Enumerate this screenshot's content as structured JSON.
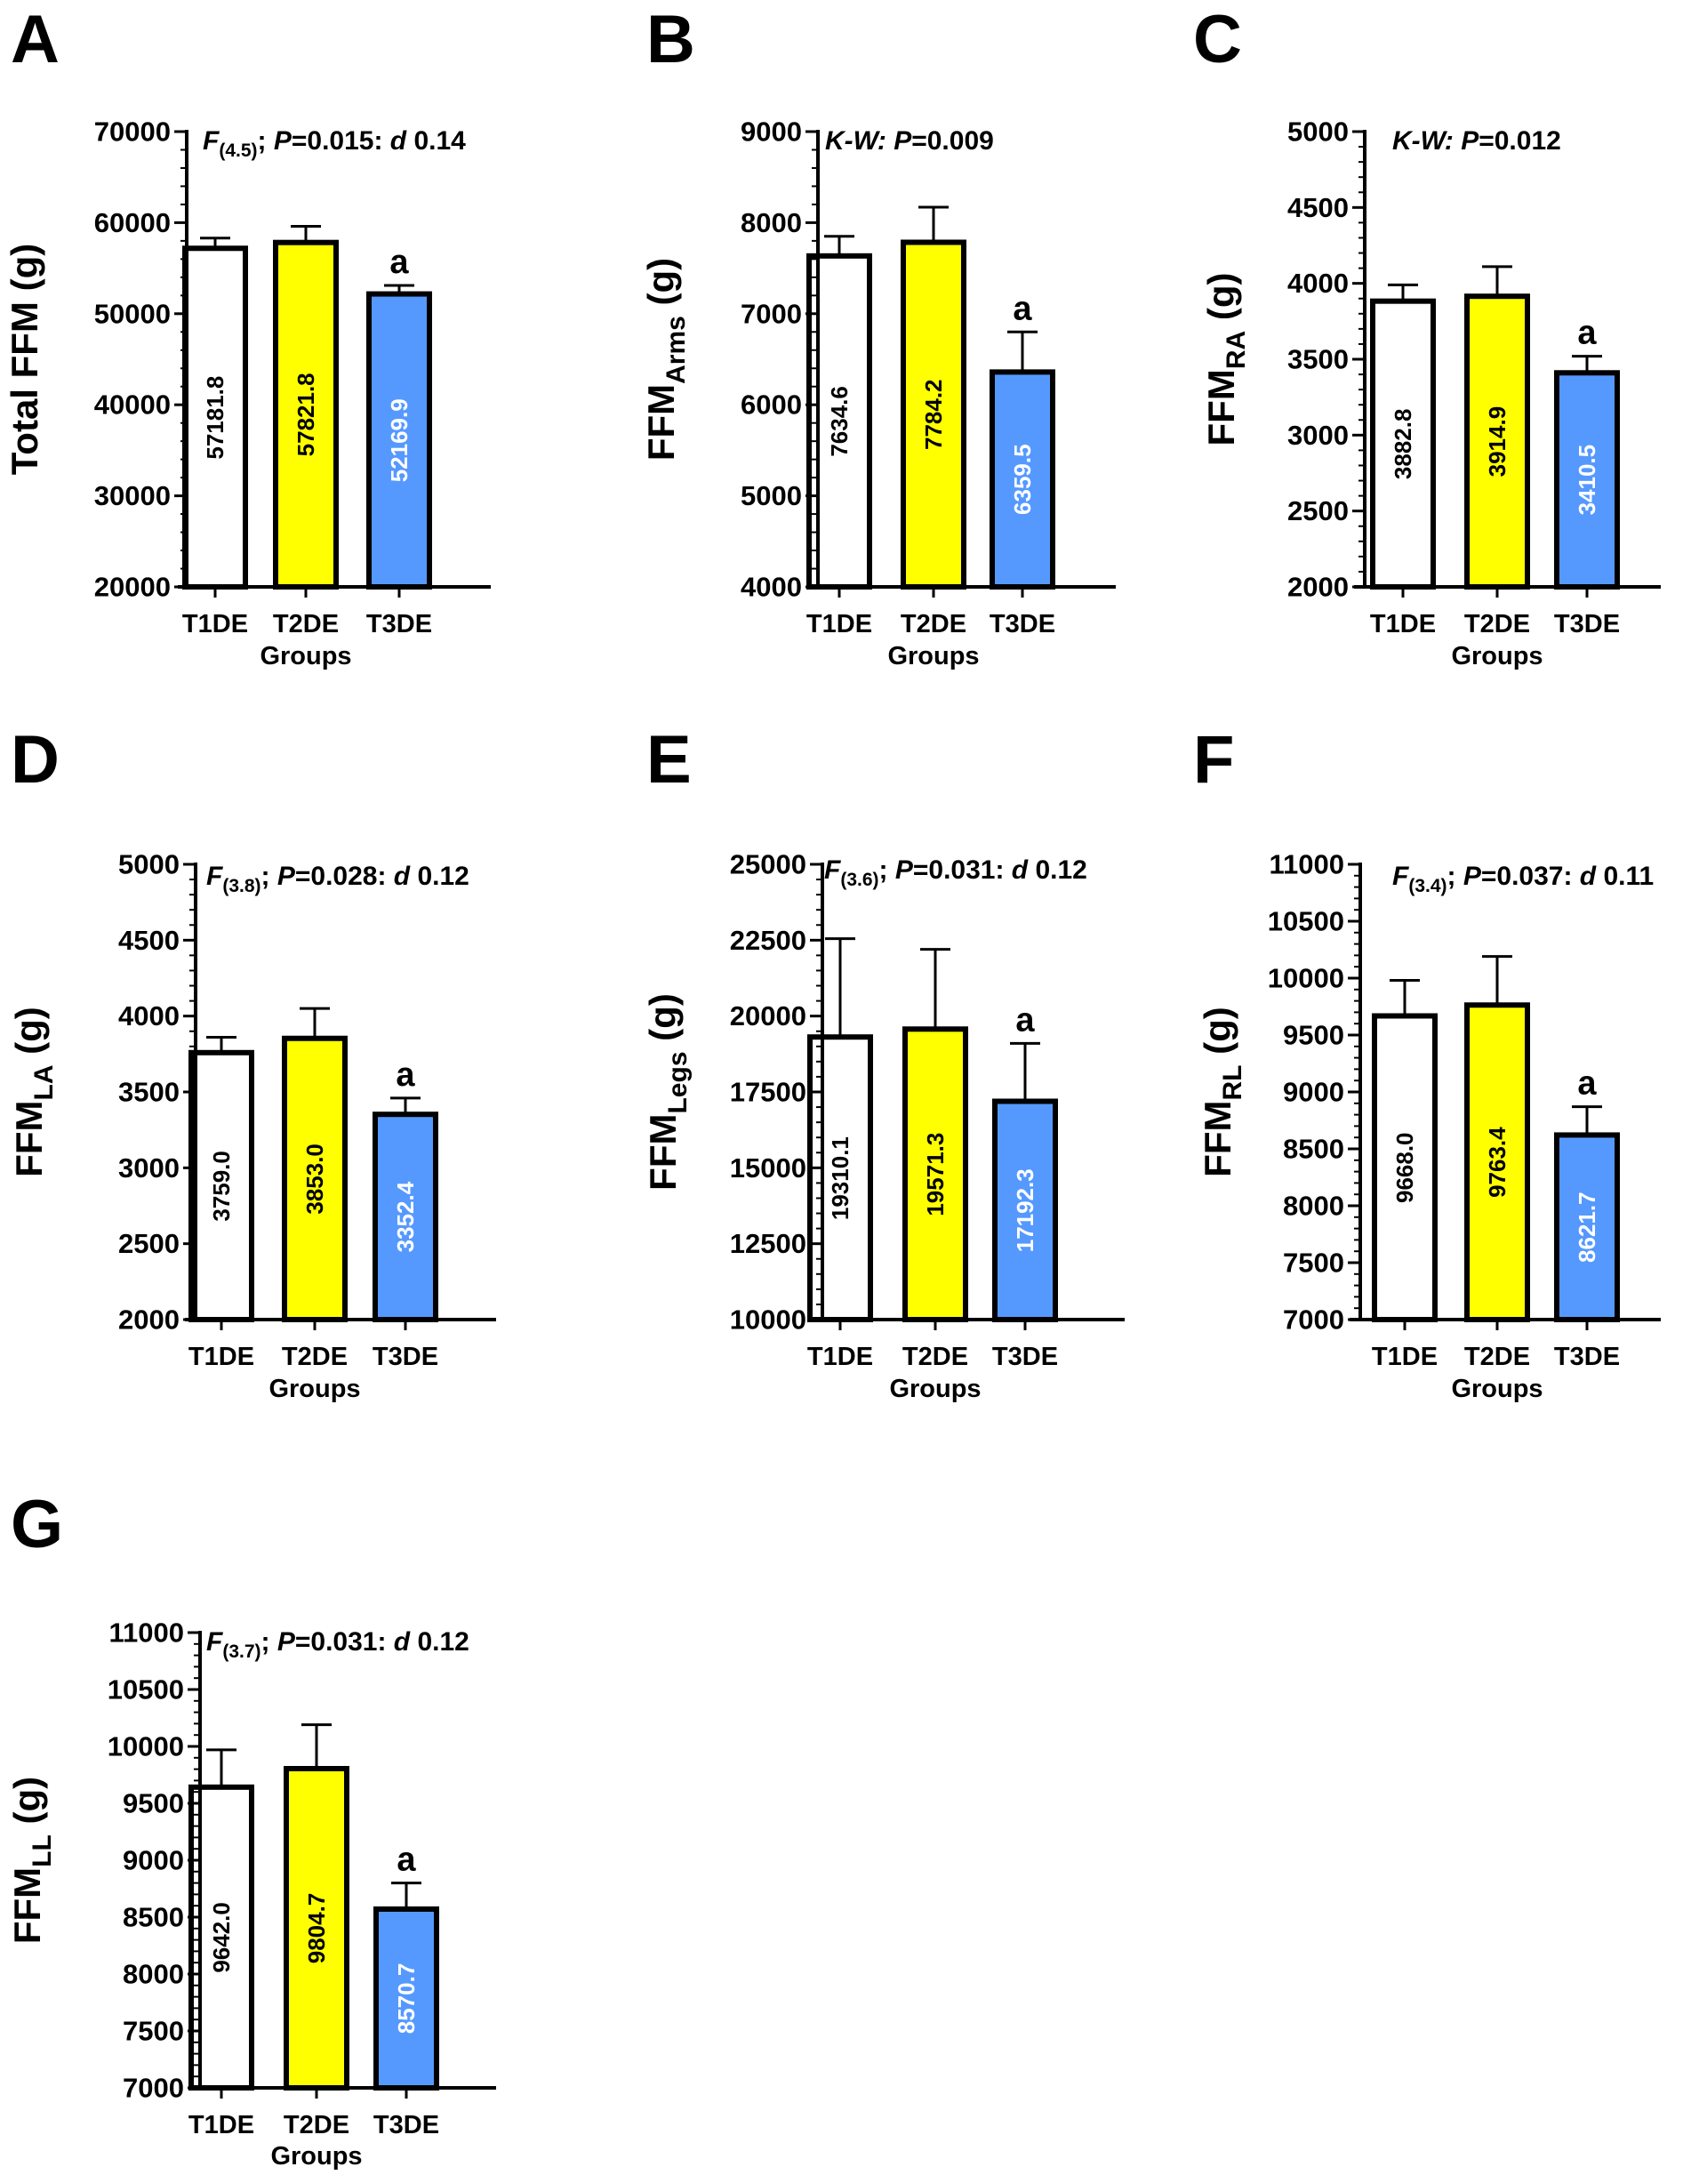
{
  "chart_data": [
    {
      "panel": "A",
      "type": "bar",
      "ylabel_main": "Total FFM (g)",
      "ylabel_sub": "",
      "xlabel": "Groups",
      "stat_test": "F",
      "stat_df": "(4.5)",
      "stat_p": "P=0.015",
      "stat_d": "d",
      "stat_dval": "0.14",
      "ylim": [
        20000,
        70000
      ],
      "major_ticks": [
        20000,
        30000,
        40000,
        50000,
        60000,
        70000
      ],
      "minor_step": 2000,
      "categories": [
        "T1DE",
        "T2DE",
        "T3DE"
      ],
      "values": [
        57181.8,
        57821.8,
        52169.9
      ],
      "value_labels": [
        "57181.8",
        "57821.8",
        "52169.9"
      ],
      "error_top": [
        58300,
        59600,
        53100
      ],
      "sig": [
        "",
        "",
        "a"
      ]
    },
    {
      "panel": "B",
      "type": "bar",
      "ylabel_main": "FFM",
      "ylabel_sub": "Arms",
      "xlabel": "Groups",
      "stat_test": "K-W:",
      "stat_df": "",
      "stat_p": "P=0.009",
      "stat_d": "",
      "stat_dval": "",
      "ylim": [
        4000,
        9000
      ],
      "major_ticks": [
        4000,
        5000,
        6000,
        7000,
        8000,
        9000
      ],
      "minor_step": 200,
      "categories": [
        "T1DE",
        "T2DE",
        "T3DE"
      ],
      "values": [
        7634.6,
        7784.2,
        6359.5
      ],
      "value_labels": [
        "7634.6",
        "7784.2",
        "6359.5"
      ],
      "error_top": [
        7850,
        8170,
        6800
      ],
      "sig": [
        "",
        "",
        "a"
      ]
    },
    {
      "panel": "C",
      "type": "bar",
      "ylabel_main": "FFM",
      "ylabel_sub": "RA",
      "xlabel": "Groups",
      "stat_test": "K-W:",
      "stat_df": "",
      "stat_p": "P=0.012",
      "stat_d": "",
      "stat_dval": "",
      "ylim": [
        2000,
        5000
      ],
      "major_ticks": [
        2000,
        2500,
        3000,
        3500,
        4000,
        4500,
        5000
      ],
      "minor_step": 100,
      "categories": [
        "T1DE",
        "T2DE",
        "T3DE"
      ],
      "values": [
        3882.8,
        3914.9,
        3410.5
      ],
      "value_labels": [
        "3882.8",
        "3914.9",
        "3410.5"
      ],
      "error_top": [
        3990,
        4110,
        3520
      ],
      "sig": [
        "",
        "",
        "a"
      ]
    },
    {
      "panel": "D",
      "type": "bar",
      "ylabel_main": "FFM",
      "ylabel_sub": "LA",
      "xlabel": "Groups",
      "stat_test": "F",
      "stat_df": "(3.8)",
      "stat_p": "P=0.028",
      "stat_d": "d",
      "stat_dval": "0.12",
      "ylim": [
        2000,
        5000
      ],
      "major_ticks": [
        2000,
        2500,
        3000,
        3500,
        4000,
        4500,
        5000
      ],
      "minor_step": 100,
      "categories": [
        "T1DE",
        "T2DE",
        "T3DE"
      ],
      "values": [
        3759.0,
        3853.0,
        3352.4
      ],
      "value_labels": [
        "3759.0",
        "3853.0",
        "3352.4"
      ],
      "error_top": [
        3860,
        4050,
        3460
      ],
      "sig": [
        "",
        "",
        "a"
      ]
    },
    {
      "panel": "E",
      "type": "bar",
      "ylabel_main": "FFM",
      "ylabel_sub": "Legs",
      "xlabel": "Groups",
      "stat_test": "F",
      "stat_df": "(3.6)",
      "stat_p": "P=0.031",
      "stat_d": "d",
      "stat_dval": "0.12",
      "ylim": [
        10000,
        25000
      ],
      "major_ticks": [
        10000,
        12500,
        15000,
        17500,
        20000,
        22500,
        25000
      ],
      "minor_step": 500,
      "categories": [
        "T1DE",
        "T2DE",
        "T3DE"
      ],
      "values": [
        19310.1,
        19571.3,
        17192.3
      ],
      "value_labels": [
        "19310.1",
        "19571.3",
        "17192.3"
      ],
      "error_top": [
        22550,
        22200,
        19100
      ],
      "sig": [
        "",
        "",
        "a"
      ]
    },
    {
      "panel": "F",
      "type": "bar",
      "ylabel_main": "FFM",
      "ylabel_sub": "RL",
      "xlabel": "Groups",
      "stat_test": "F",
      "stat_df": "(3.4)",
      "stat_p": "P=0.037",
      "stat_d": "d",
      "stat_dval": "0.11",
      "ylim": [
        7000,
        11000
      ],
      "major_ticks": [
        7000,
        7500,
        8000,
        8500,
        9000,
        9500,
        10000,
        10500,
        11000
      ],
      "minor_step": 100,
      "categories": [
        "T1DE",
        "T2DE",
        "T3DE"
      ],
      "values": [
        9668.0,
        9763.4,
        8621.7
      ],
      "value_labels": [
        "9668.0",
        "9763.4",
        "8621.7"
      ],
      "error_top": [
        9980,
        10190,
        8870
      ],
      "sig": [
        "",
        "",
        "a"
      ]
    },
    {
      "panel": "G",
      "type": "bar",
      "ylabel_main": "FFM",
      "ylabel_sub": "LL",
      "xlabel": "Groups",
      "stat_test": "F",
      "stat_df": "(3.7)",
      "stat_p": "P=0.031",
      "stat_d": "d",
      "stat_dval": "0.12",
      "ylim": [
        7000,
        11000
      ],
      "major_ticks": [
        7000,
        7500,
        8000,
        8500,
        9000,
        9500,
        10000,
        10500,
        11000
      ],
      "minor_step": 100,
      "categories": [
        "T1DE",
        "T2DE",
        "T3DE"
      ],
      "values": [
        9642.0,
        9804.7,
        8570.7
      ],
      "value_labels": [
        "9642.0",
        "9804.7",
        "8570.7"
      ],
      "error_top": [
        9970,
        10190,
        8800
      ],
      "sig": [
        "",
        "",
        "a"
      ]
    }
  ],
  "colors": {
    "bar_fills": [
      "#ffffff",
      "#ffff00",
      "#5599ff"
    ],
    "bar_label_colors": [
      "#000000",
      "#000000",
      "#ffffff"
    ],
    "axis": "#000000"
  }
}
